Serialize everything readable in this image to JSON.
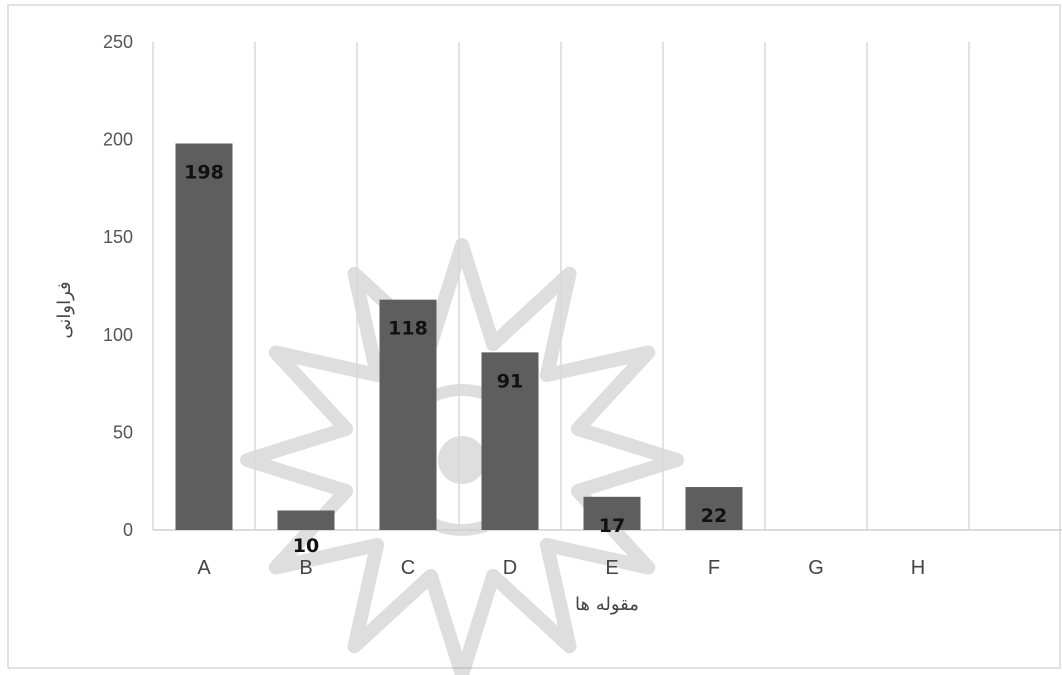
{
  "chart_data": {
    "type": "bar",
    "title": "",
    "xlabel": "مقوله ها",
    "ylabel": "فراوانی",
    "categories": [
      "A",
      "B",
      "C",
      "D",
      "E",
      "F",
      "G",
      "H"
    ],
    "values": [
      198,
      10,
      118,
      91,
      17,
      22,
      null,
      null
    ],
    "data_labels": [
      "198",
      "10",
      "118",
      "91",
      "17",
      "22",
      "",
      ""
    ],
    "yticks": [
      "0",
      "50",
      "100",
      "150",
      "200",
      "250"
    ],
    "ylim": [
      0,
      250
    ],
    "grid": "vertical",
    "legend": "none",
    "bar_color": "#5e5e5e",
    "watermark": "decorative-star-rosette"
  }
}
